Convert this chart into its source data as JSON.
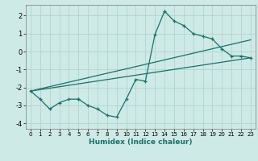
{
  "xlabel": "Humidex (Indice chaleur)",
  "background_color": "#ceeae6",
  "grid_color": "#b0d4cf",
  "line_color": "#1a7068",
  "xlim": [
    -0.5,
    23.5
  ],
  "ylim": [
    -4.3,
    2.6
  ],
  "xticks": [
    0,
    1,
    2,
    3,
    4,
    5,
    6,
    7,
    8,
    9,
    10,
    11,
    12,
    13,
    14,
    15,
    16,
    17,
    18,
    19,
    20,
    21,
    22,
    23
  ],
  "yticks": [
    -4,
    -3,
    -2,
    -1,
    0,
    1,
    2
  ],
  "curve_x": [
    0,
    1,
    2,
    3,
    4,
    5,
    5,
    6,
    7,
    8,
    9,
    10,
    11,
    12,
    13,
    14,
    15,
    16,
    17,
    18,
    19,
    20,
    21,
    22,
    23
  ],
  "curve_y": [
    -2.2,
    -2.65,
    -3.2,
    -2.85,
    -2.65,
    -2.65,
    -2.65,
    -3.0,
    -3.2,
    -3.55,
    -3.65,
    -2.65,
    -1.55,
    -1.65,
    0.95,
    2.25,
    1.7,
    1.45,
    1.0,
    0.85,
    0.7,
    0.15,
    -0.25,
    -0.25,
    -0.35
  ],
  "line1_x": [
    0,
    23
  ],
  "line1_y": [
    -2.2,
    -0.35
  ],
  "line2_x": [
    0,
    23
  ],
  "line2_y": [
    -2.2,
    0.65
  ]
}
